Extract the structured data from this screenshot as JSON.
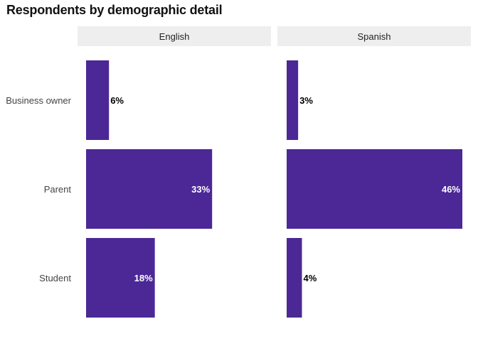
{
  "chart_data": {
    "type": "bar",
    "orientation": "horizontal",
    "title": "Respondents by demographic detail",
    "categories": [
      "Business owner",
      "Parent",
      "Student"
    ],
    "panels": [
      {
        "name": "English",
        "values": [
          6,
          33,
          18
        ],
        "labels": [
          "6%",
          "33%",
          "18%"
        ]
      },
      {
        "name": "Spanish",
        "values": [
          3,
          46,
          4
        ],
        "labels": [
          "3%",
          "46%",
          "4%"
        ]
      }
    ],
    "xlim": [
      0,
      46
    ],
    "grid": false,
    "legend": "none",
    "colors": {
      "bar": "#4b2896",
      "strip": "#eeeeee",
      "label_inside": "#ffffff",
      "label_outside": "#000000",
      "axis_text": "#444444",
      "title": "#111111"
    }
  }
}
